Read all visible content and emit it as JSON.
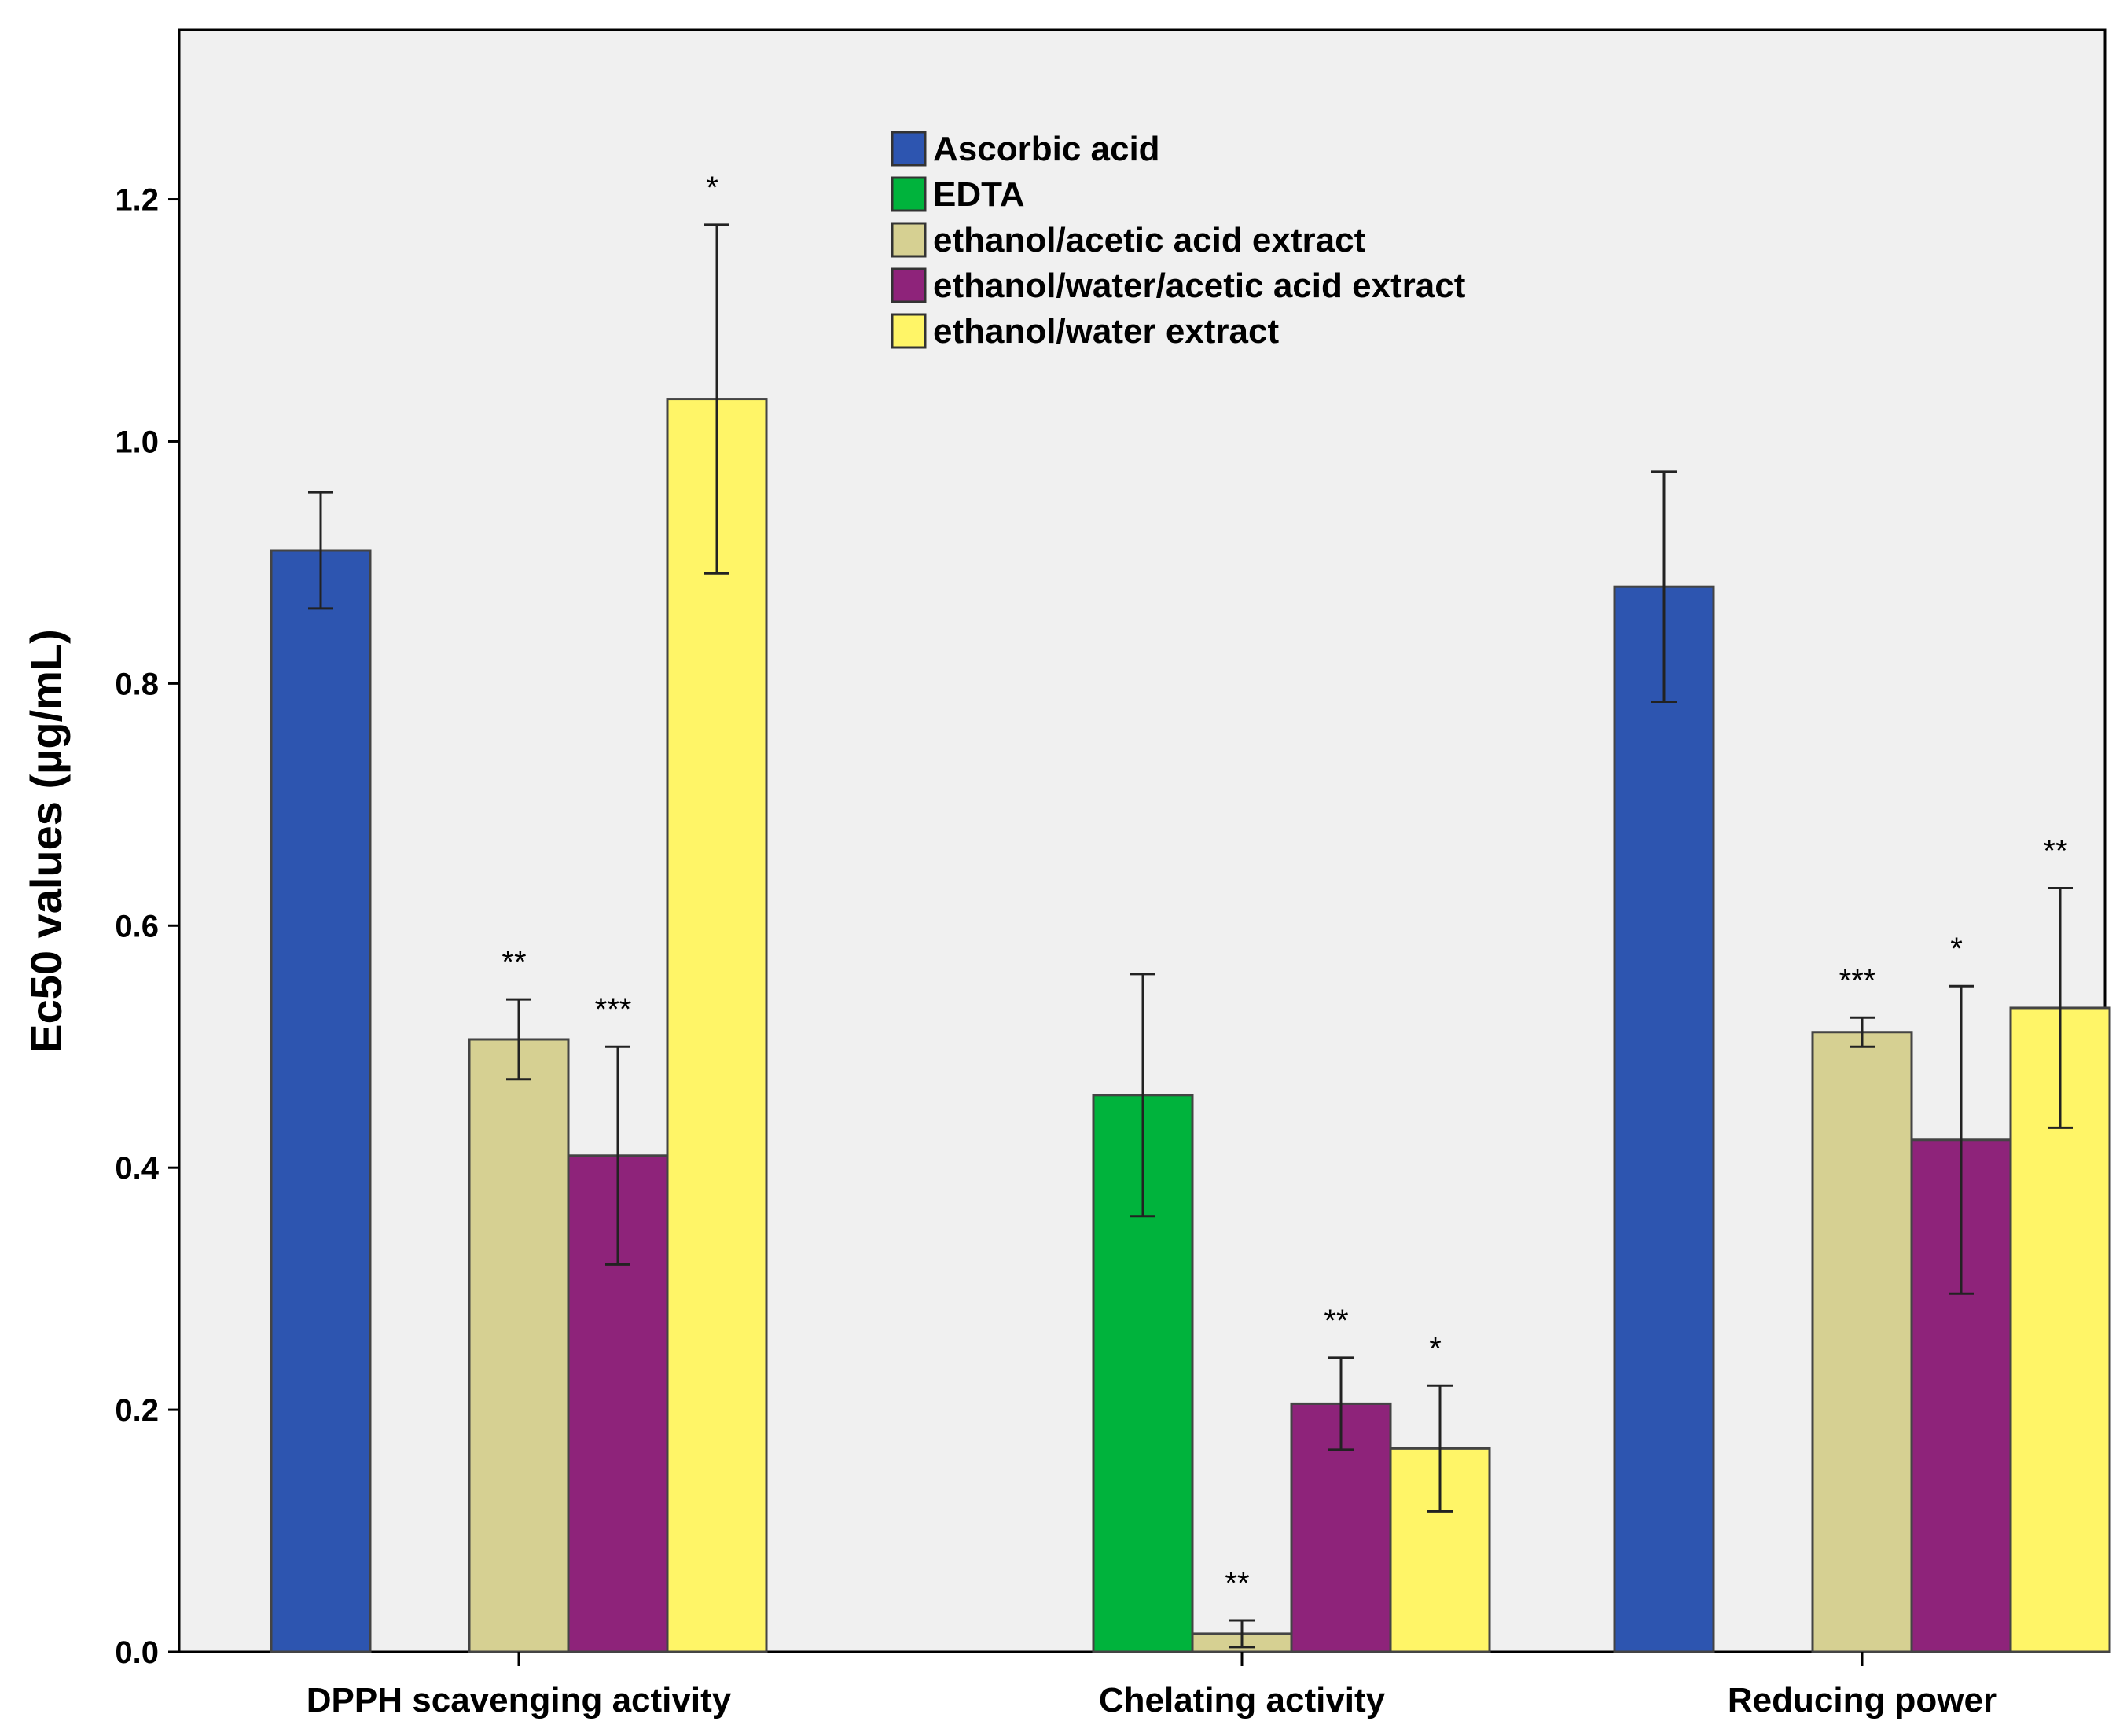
{
  "chart_data": {
    "type": "bar",
    "title": "",
    "xlabel": "",
    "ylabel": "Ec50 values (µg/mL)",
    "ylim": [
      0,
      1.34
    ],
    "yticks": [
      "0.0",
      "0.2",
      "0.4",
      "0.6",
      "0.8",
      "1.0",
      "1.2"
    ],
    "categories": [
      "DPPH scavenging activity",
      "Chelating activity",
      "Reducing power"
    ],
    "legend_position": "top-center",
    "series": [
      {
        "name": "Ascorbic acid",
        "color": "#2D55B0",
        "values": [
          0.91,
          null,
          0.88
        ],
        "errors": [
          0.048,
          null,
          0.095
        ],
        "sig": [
          "",
          "",
          ""
        ]
      },
      {
        "name": "EDTA",
        "color": "#00B33C",
        "values": [
          null,
          0.46,
          null
        ],
        "errors": [
          null,
          0.1,
          null
        ],
        "sig": [
          "",
          "",
          ""
        ]
      },
      {
        "name": "ethanol/acetic acid extract",
        "color": "#D6D092",
        "values": [
          0.506,
          0.015,
          0.512
        ],
        "errors": [
          0.033,
          0.011,
          0.012
        ],
        "sig": [
          "**",
          "**",
          "***"
        ]
      },
      {
        "name": "ethanol/water/acetic acid extract",
        "color": "#8E237A",
        "values": [
          0.41,
          0.205,
          0.423
        ],
        "errors": [
          0.09,
          0.038,
          0.127
        ],
        "sig": [
          "***",
          "**",
          "*"
        ]
      },
      {
        "name": "ethanol/water extract",
        "color": "#FFF567",
        "values": [
          1.035,
          0.168,
          0.532
        ],
        "errors": [
          0.144,
          0.052,
          0.099
        ],
        "sig": [
          "*",
          "*",
          "**"
        ]
      }
    ]
  }
}
